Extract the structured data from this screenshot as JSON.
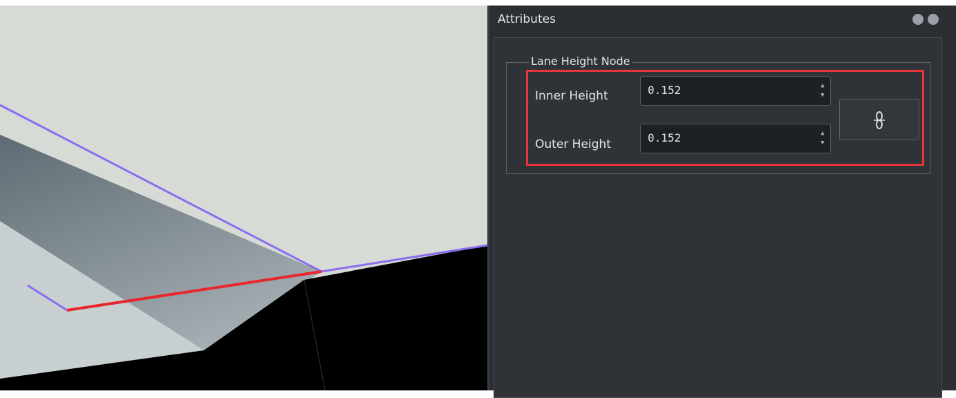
{
  "panel": {
    "title": "Attributes",
    "group": {
      "title": "Lane Height Node",
      "fields": [
        {
          "label": "Inner Height",
          "value": "0.152"
        },
        {
          "label": "Outer Height",
          "value": "0.152"
        }
      ]
    }
  }
}
